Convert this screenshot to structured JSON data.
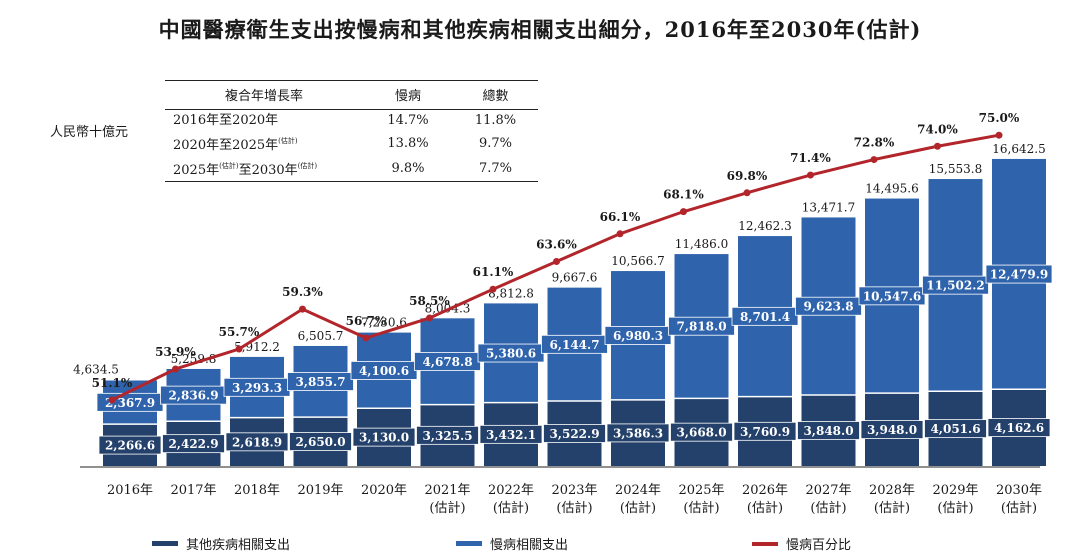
{
  "chart_data": {
    "type": "bar",
    "title": "中國醫療衛生支出按慢病和其他疾病相關支出細分，2016年至2030年(估計)",
    "ylabel": "人民幣十億元",
    "categories": [
      {
        "year": "2016年",
        "est": ""
      },
      {
        "year": "2017年",
        "est": ""
      },
      {
        "year": "2018年",
        "est": ""
      },
      {
        "year": "2019年",
        "est": ""
      },
      {
        "year": "2020年",
        "est": ""
      },
      {
        "year": "2021年",
        "est": "(估計)"
      },
      {
        "year": "2022年",
        "est": "(估計)"
      },
      {
        "year": "2023年",
        "est": "(估計)"
      },
      {
        "year": "2024年",
        "est": "(估計)"
      },
      {
        "year": "2025年",
        "est": "(估計)"
      },
      {
        "year": "2026年",
        "est": "(估計)"
      },
      {
        "year": "2027年",
        "est": "(估計)"
      },
      {
        "year": "2028年",
        "est": "(估計)"
      },
      {
        "year": "2029年",
        "est": "(估計)"
      },
      {
        "year": "2030年",
        "est": "(估計)"
      }
    ],
    "series": [
      {
        "name": "其他疾病相關支出",
        "color": "#24416b",
        "values": [
          2266.6,
          2422.9,
          2618.9,
          2650.0,
          3130.0,
          3325.5,
          3432.1,
          3522.9,
          3586.3,
          3668.0,
          3760.9,
          3848.0,
          3948.0,
          4051.6,
          4162.6
        ],
        "labels": [
          "2,266.6",
          "2,422.9",
          "2,618.9",
          "2,650.0",
          "3,130.0",
          "3,325.5",
          "3,432.1",
          "3,522.9",
          "3,586.3",
          "3,668.0",
          "3,760.9",
          "3,848.0",
          "3,948.0",
          "4,051.6",
          "4,162.6"
        ]
      },
      {
        "name": "慢病相關支出",
        "color": "#2f64ad",
        "values": [
          2367.9,
          2836.9,
          3293.3,
          3855.7,
          4100.6,
          4678.8,
          5380.6,
          6144.7,
          6980.3,
          7818.0,
          8701.4,
          9623.8,
          10547.6,
          11502.2,
          12479.9
        ],
        "labels": [
          "2,367.9",
          "2,836.9",
          "3,293.3",
          "3,855.7",
          "4,100.6",
          "4,678.8",
          "5,380.6",
          "6,144.7",
          "6,980.3",
          "7,818.0",
          "8,701.4",
          "9,623.8",
          "10,547.6",
          "11,502.2",
          "12,479.9"
        ]
      }
    ],
    "totals": {
      "values": [
        4634.5,
        5259.8,
        5912.2,
        6505.7,
        7230.6,
        8004.3,
        8812.8,
        9667.6,
        10566.7,
        11486.0,
        12462.3,
        13471.7,
        14495.6,
        15553.8,
        16642.5
      ],
      "labels": [
        "4,634.5",
        "5,259.8",
        "5,912.2",
        "6,505.7",
        "7,230.6",
        "8,004.3",
        "8,812.8",
        "9,667.6",
        "10,566.7",
        "11,486.0",
        "12,462.3",
        "13,471.7",
        "14,495.6",
        "15,553.8",
        "16,642.5"
      ]
    },
    "line": {
      "name": "慢病百分比",
      "color": "#b2252b",
      "values": [
        51.1,
        53.9,
        55.7,
        59.3,
        56.7,
        58.5,
        61.1,
        63.6,
        66.1,
        68.1,
        69.8,
        71.4,
        72.8,
        74.0,
        75.0
      ],
      "labels": [
        "51.1%",
        "53.9%",
        "55.7%",
        "59.3%",
        "56.7%",
        "58.5%",
        "61.1%",
        "63.6%",
        "66.1%",
        "68.1%",
        "69.8%",
        "71.4%",
        "72.8%",
        "74.0%",
        "75.0%"
      ]
    },
    "table": {
      "headers": [
        "複合年增長率",
        "慢病",
        "總數"
      ],
      "rows": [
        {
          "period": "2016年至2020年",
          "note1": "",
          "mid": "",
          "note2": "",
          "chronic": "14.7%",
          "total": "11.8%"
        },
        {
          "period": "2020年至2025年",
          "note1": "(估計)",
          "mid": "",
          "note2": "",
          "chronic": "13.8%",
          "total": "9.7%"
        },
        {
          "period": "2025年",
          "note1": "(估計)",
          "mid": "至2030年",
          "note2": "(估計)",
          "chronic": "9.8%",
          "total": "7.7%"
        }
      ]
    }
  }
}
